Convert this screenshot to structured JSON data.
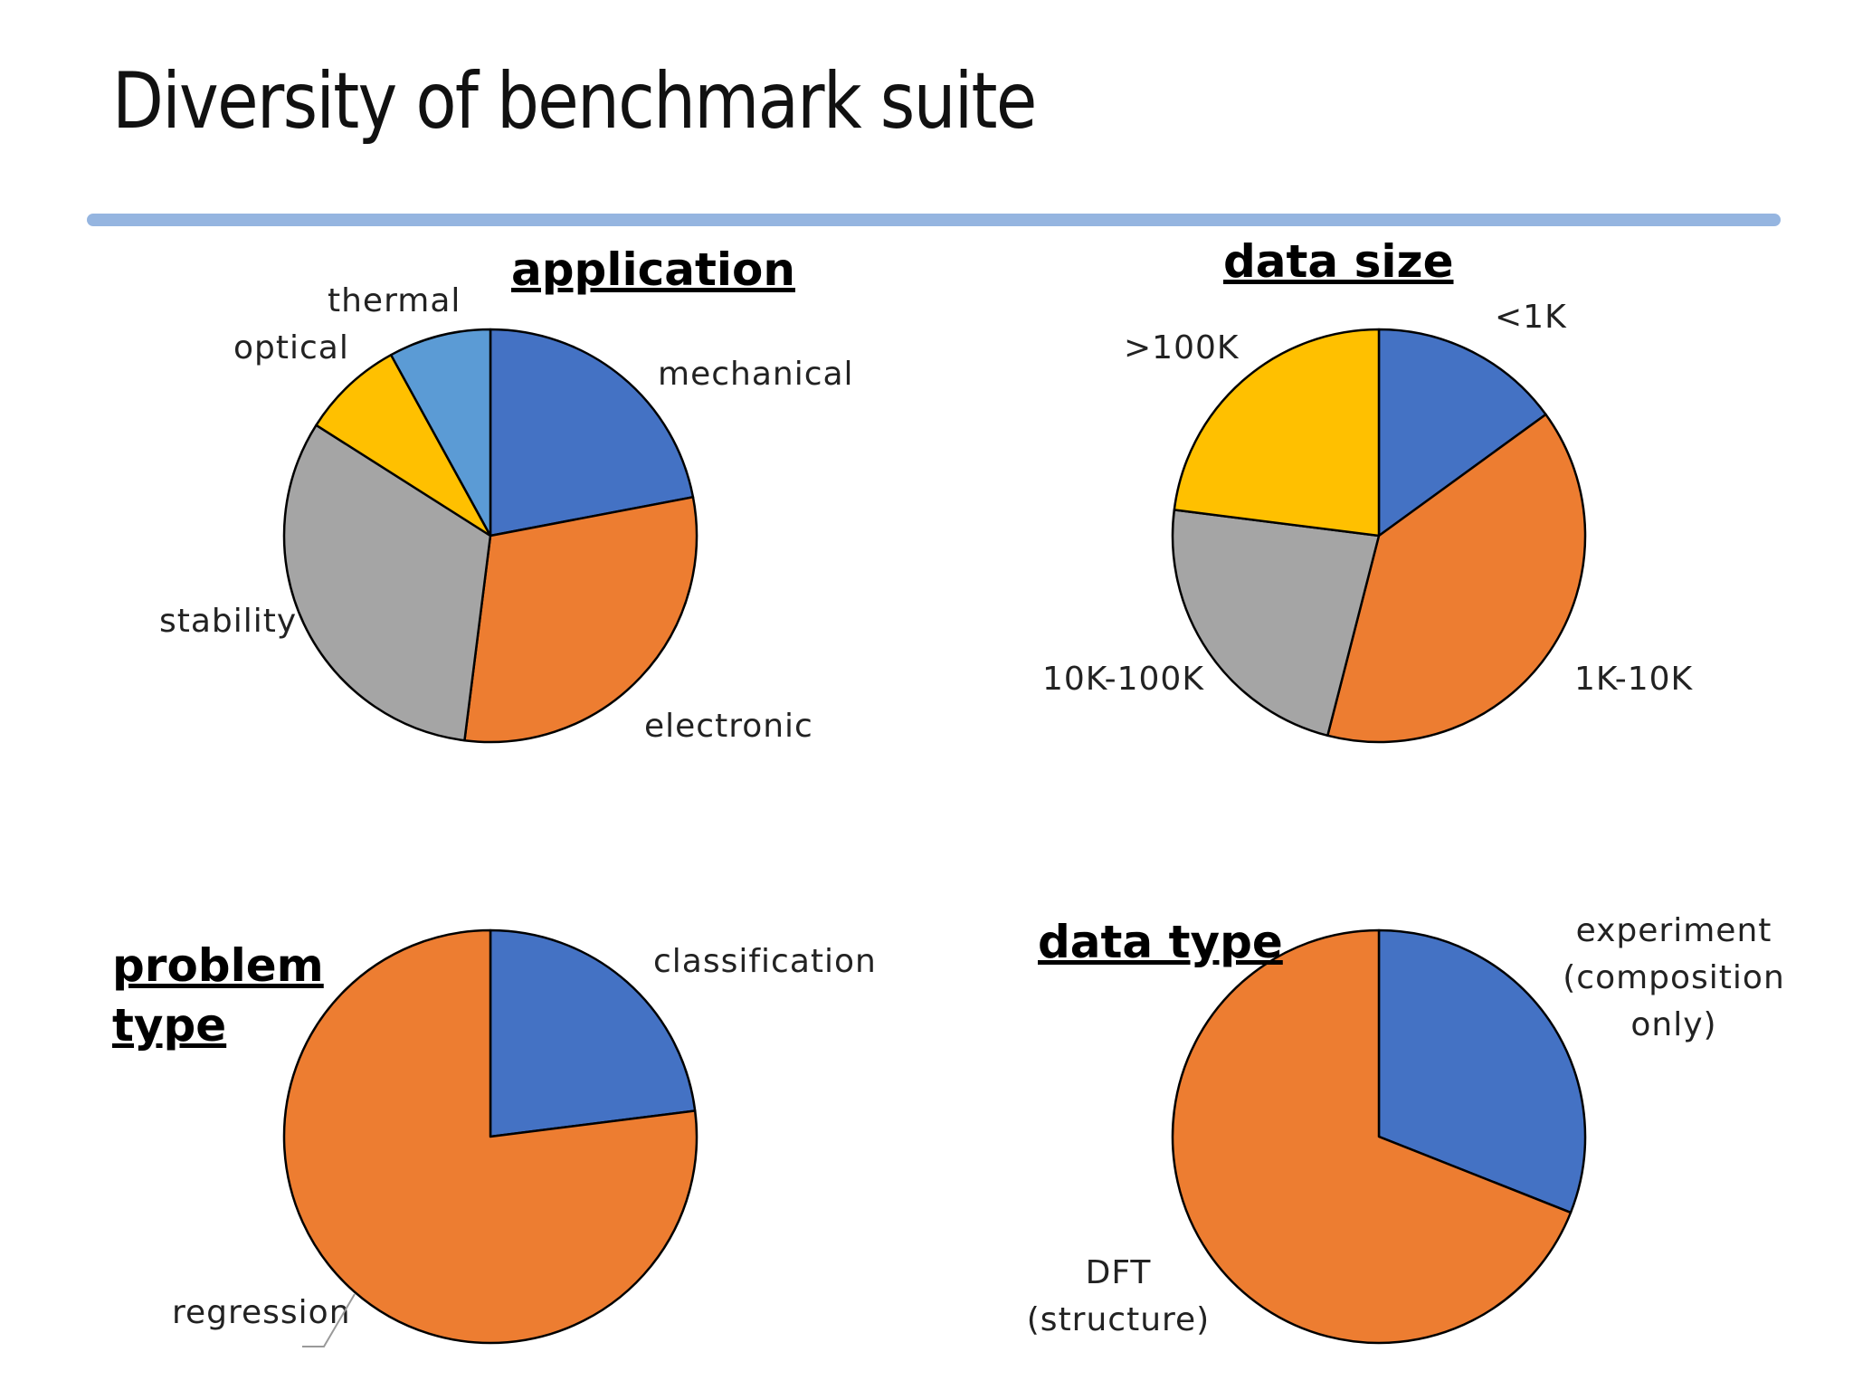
{
  "slide": {
    "title": "Diversity of benchmark suite",
    "rule_color": "#95b5e0"
  },
  "chart_data": [
    {
      "type": "pie",
      "title": "application",
      "slices": [
        {
          "label": "mechanical",
          "value": 22,
          "color": "#4472c4"
        },
        {
          "label": "electronic",
          "value": 30,
          "color": "#ed7d31"
        },
        {
          "label": "stability",
          "value": 32,
          "color": "#a5a5a5"
        },
        {
          "label": "optical",
          "value": 8,
          "color": "#ffc000"
        },
        {
          "label": "thermal",
          "value": 8,
          "color": "#5b9bd5"
        }
      ]
    },
    {
      "type": "pie",
      "title": "data size",
      "slices": [
        {
          "label": "<1K",
          "value": 15,
          "color": "#4472c4"
        },
        {
          "label": "1K-10K",
          "value": 39,
          "color": "#ed7d31"
        },
        {
          "label": "10K-100K",
          "value": 23,
          "color": "#a5a5a5"
        },
        {
          "label": ">100K",
          "value": 23,
          "color": "#ffc000"
        }
      ]
    },
    {
      "type": "pie",
      "title_lines": [
        "problem",
        "type"
      ],
      "slices": [
        {
          "label": "classification",
          "value": 23,
          "color": "#4472c4"
        },
        {
          "label": "regression",
          "value": 77,
          "color": "#ed7d31"
        }
      ]
    },
    {
      "type": "pie",
      "title": "data type",
      "slices": [
        {
          "label_lines": [
            "experiment",
            "(composition",
            "only)"
          ],
          "value": 31,
          "color": "#4472c4"
        },
        {
          "label_lines": [
            "DFT",
            "(structure)"
          ],
          "value": 69,
          "color": "#ed7d31"
        }
      ]
    }
  ]
}
